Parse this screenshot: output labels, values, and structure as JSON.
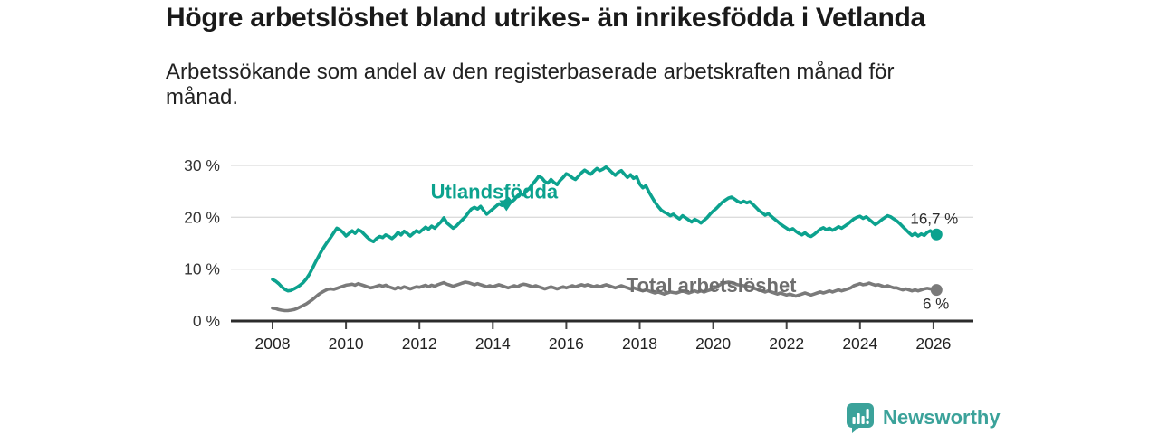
{
  "header": {
    "title": "Högre arbetslöshet bland utrikes- än inrikesfödda i Vetlanda",
    "subtitle": "Arbetssökande som andel av den registerbaserade arbetskraften månad för månad."
  },
  "colors": {
    "accent_teal": "#0ca28e",
    "line_gray": "#7a7a7a",
    "label_gray": "#6e6e6e",
    "value_label": "#2b2b2b",
    "axis_text": "#333333",
    "grid": "#dcdcdc",
    "axis_line": "#2b2b2b",
    "brand_teal": "#3ba29a",
    "title_text": "#1a1a1a"
  },
  "chart_data": {
    "type": "line",
    "title": "Högre arbetslöshet bland utrikes- än inrikesfödda i Vetlanda",
    "xlabel": "",
    "ylabel": "",
    "unit": "%",
    "frequency": "monthly",
    "x_start_year": 2008,
    "x_end_year": 2026.083,
    "ylim": [
      0,
      30
    ],
    "grid": "horizontal",
    "legend_position": "inline-labels",
    "x_ticks": {
      "values": [
        2008,
        2010,
        2012,
        2014,
        2016,
        2018,
        2020,
        2022,
        2024,
        2026
      ],
      "labels": [
        "2008",
        "2010",
        "2012",
        "2014",
        "2016",
        "2018",
        "2020",
        "2022",
        "2024",
        "2026"
      ]
    },
    "y_ticks": {
      "values": [
        0,
        10,
        20,
        30
      ],
      "labels": [
        "0 %",
        "10 %",
        "20 %",
        "30 %"
      ]
    },
    "series": [
      {
        "name": "Utlandsfödda",
        "color": "#0ca28e",
        "end_label": "16,7 %",
        "end_value": 16.7,
        "values": [
          8.0,
          7.7,
          7.2,
          6.6,
          6.1,
          5.8,
          5.9,
          6.2,
          6.5,
          6.9,
          7.4,
          8.1,
          9.0,
          10.1,
          11.3,
          12.4,
          13.5,
          14.4,
          15.3,
          16.1,
          17.0,
          17.9,
          17.6,
          17.1,
          16.4,
          16.9,
          17.4,
          16.9,
          17.6,
          17.3,
          16.7,
          16.1,
          15.6,
          15.3,
          15.9,
          16.3,
          16.1,
          16.6,
          16.3,
          15.9,
          16.4,
          17.1,
          16.6,
          17.3,
          16.9,
          16.4,
          16.9,
          17.4,
          17.1,
          17.6,
          18.1,
          17.7,
          18.3,
          17.9,
          18.5,
          19.1,
          19.9,
          18.9,
          18.4,
          17.9,
          18.3,
          18.9,
          19.5,
          20.1,
          20.9,
          21.6,
          21.9,
          21.6,
          22.1,
          21.3,
          20.6,
          21.1,
          21.6,
          22.1,
          22.6,
          22.3,
          23.1,
          23.6,
          22.9,
          23.4,
          24.1,
          24.6,
          24.3,
          25.1,
          25.6,
          26.4,
          27.1,
          27.9,
          27.6,
          26.9,
          26.6,
          27.3,
          26.7,
          26.3,
          27.1,
          27.7,
          28.4,
          28.1,
          27.6,
          27.3,
          27.9,
          28.6,
          29.1,
          28.7,
          28.3,
          28.9,
          29.4,
          29.0,
          29.3,
          29.7,
          29.2,
          28.6,
          28.1,
          28.7,
          29.0,
          28.3,
          27.7,
          28.2,
          27.5,
          27.8,
          26.4,
          25.7,
          26.1,
          24.9,
          23.9,
          22.9,
          22.1,
          21.4,
          21.0,
          20.7,
          20.3,
          20.6,
          20.1,
          19.7,
          20.3,
          19.9,
          19.5,
          19.1,
          19.6,
          19.3,
          18.9,
          19.4,
          19.9,
          20.6,
          21.2,
          21.7,
          22.3,
          22.9,
          23.3,
          23.7,
          23.9,
          23.5,
          23.1,
          22.8,
          23.1,
          22.8,
          23.0,
          22.5,
          21.9,
          21.3,
          20.9,
          20.4,
          20.7,
          20.2,
          19.7,
          19.2,
          18.7,
          18.3,
          17.9,
          17.5,
          17.8,
          17.3,
          16.9,
          16.6,
          17.0,
          16.5,
          16.3,
          16.7,
          17.2,
          17.7,
          18.0,
          17.6,
          17.9,
          17.5,
          17.8,
          18.2,
          17.9,
          18.3,
          18.7,
          19.2,
          19.7,
          20.0,
          20.2,
          19.8,
          20.1,
          19.6,
          19.1,
          18.6,
          19.0,
          19.5,
          19.9,
          20.3,
          20.1,
          19.7,
          19.3,
          18.8,
          18.2,
          17.6,
          17.0,
          16.5,
          16.9,
          16.4,
          16.8,
          16.5,
          17.1,
          17.4,
          16.9,
          16.7
        ]
      },
      {
        "name": "Total arbetslöshet",
        "color": "#7a7a7a",
        "end_label": "6 %",
        "end_value": 6.0,
        "values": [
          2.5,
          2.4,
          2.2,
          2.1,
          2.0,
          2.0,
          2.1,
          2.2,
          2.4,
          2.7,
          3.0,
          3.3,
          3.7,
          4.1,
          4.6,
          5.1,
          5.5,
          5.8,
          6.1,
          6.2,
          6.1,
          6.3,
          6.5,
          6.7,
          6.9,
          7.0,
          7.1,
          6.9,
          7.2,
          7.0,
          6.8,
          6.6,
          6.4,
          6.5,
          6.7,
          6.9,
          6.7,
          6.9,
          6.6,
          6.4,
          6.2,
          6.5,
          6.3,
          6.6,
          6.4,
          6.2,
          6.4,
          6.6,
          6.5,
          6.7,
          6.9,
          6.6,
          6.9,
          6.7,
          7.0,
          7.2,
          7.4,
          7.1,
          6.9,
          6.7,
          6.9,
          7.1,
          7.3,
          7.5,
          7.4,
          7.2,
          7.0,
          7.2,
          7.0,
          6.8,
          6.6,
          6.8,
          6.6,
          6.8,
          7.0,
          6.8,
          6.6,
          6.4,
          6.6,
          6.8,
          6.6,
          6.9,
          7.1,
          7.0,
          6.8,
          6.6,
          6.8,
          6.6,
          6.4,
          6.2,
          6.4,
          6.6,
          6.4,
          6.2,
          6.4,
          6.6,
          6.4,
          6.6,
          6.8,
          6.6,
          6.8,
          7.0,
          6.8,
          7.0,
          6.8,
          6.6,
          6.8,
          6.6,
          6.8,
          7.0,
          6.8,
          6.6,
          6.4,
          6.6,
          6.8,
          6.6,
          6.4,
          6.2,
          6.4,
          6.2,
          6.0,
          5.8,
          6.0,
          5.8,
          5.6,
          5.4,
          5.6,
          5.4,
          5.2,
          5.4,
          5.6,
          5.5,
          5.4,
          5.6,
          5.8,
          5.6,
          5.4,
          5.6,
          5.8,
          5.6,
          5.8,
          5.6,
          5.8,
          6.0,
          6.2,
          6.5,
          6.9,
          7.2,
          7.4,
          7.5,
          7.4,
          7.2,
          7.0,
          6.9,
          6.8,
          6.7,
          6.6,
          6.4,
          6.2,
          6.0,
          5.8,
          5.6,
          5.8,
          5.6,
          5.4,
          5.2,
          5.4,
          5.2,
          5.0,
          5.2,
          5.0,
          4.8,
          5.0,
          5.2,
          5.4,
          5.2,
          5.0,
          5.2,
          5.4,
          5.6,
          5.4,
          5.6,
          5.8,
          5.6,
          5.8,
          6.0,
          5.8,
          6.0,
          6.2,
          6.4,
          6.8,
          7.0,
          7.2,
          7.0,
          7.1,
          7.3,
          7.1,
          6.9,
          7.0,
          6.8,
          6.6,
          6.8,
          6.6,
          6.4,
          6.4,
          6.2,
          6.0,
          6.2,
          6.0,
          5.8,
          6.0,
          5.8,
          6.0,
          6.2,
          6.3,
          6.2,
          6.1,
          6.0
        ]
      }
    ],
    "annotations": [
      {
        "text": "Utlandsfödda",
        "x_year": 2014.04,
        "y_value": 23.6,
        "color": "#0ca28e",
        "arrow": {
          "x_year": 2014.37,
          "y_value": 21.2
        }
      },
      {
        "text": "Total arbetslöshet",
        "x_year": 2019.95,
        "y_value": 5.6,
        "color": "#6e6e6e"
      }
    ]
  },
  "footer": {
    "brand": "Newsworthy"
  }
}
